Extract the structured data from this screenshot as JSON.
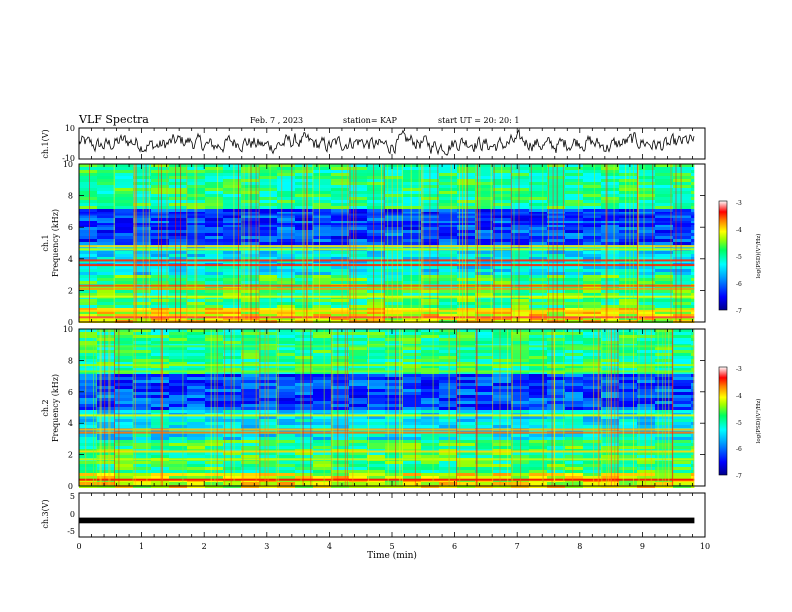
{
  "header": {
    "title": "VLF Spectra",
    "date": "Feb. 7 , 2023",
    "station": "station= KAP",
    "start_ut": "start UT =  20: 20: 1"
  },
  "colors": {
    "colormap": [
      "#00008b",
      "#0000ff",
      "#00a0ff",
      "#00ffff",
      "#00ff80",
      "#a0ff00",
      "#ffff00",
      "#ff8000",
      "#ff0000",
      "#ffffff"
    ],
    "trace": "#000000"
  },
  "chart_data": [
    {
      "type": "line",
      "panel": "ch1-waveform",
      "ylabel": "ch.1(V)",
      "ylim": [
        -10,
        10
      ],
      "yticks": [
        "10",
        "-10"
      ],
      "x_range_min": [
        0,
        9.83
      ],
      "description_values": "noisy oscillating trace around 0 V, amplitude roughly ±6 V"
    },
    {
      "type": "heatmap",
      "panel": "ch1-spectrogram",
      "ylabel": "ch.1\nFrequency (kHz)",
      "ylabel_line1": "ch.1",
      "ylabel_line2": "Frequency (kHz)",
      "ylim": [
        0,
        10
      ],
      "yticks": [
        "0",
        "2",
        "4",
        "6",
        "8",
        "10"
      ],
      "colorbar": {
        "label": "log(PSD)(V²/Hz)",
        "range": [
          -7,
          -3
        ],
        "ticks": [
          "-3",
          "-4",
          "-5",
          "-6",
          "-7"
        ]
      },
      "bands_khz": [
        {
          "f": 0.3,
          "level": -3.3
        },
        {
          "f": 0.7,
          "level": -4.0
        },
        {
          "f": 1.6,
          "level": -4.2
        },
        {
          "f": 2.1,
          "level": -3.8
        },
        {
          "f": 2.3,
          "level": -3.6
        },
        {
          "f": 3.6,
          "level": -3.5
        },
        {
          "f": 3.9,
          "level": -3.5
        },
        {
          "f": 4.6,
          "level": -4.3
        },
        {
          "f": 4.8,
          "level": -4.0
        },
        {
          "f": 6.2,
          "level": -6.5
        },
        {
          "f": 6.8,
          "level": -6.3
        }
      ]
    },
    {
      "type": "heatmap",
      "panel": "ch2-spectrogram",
      "ylabel_line1": "ch.2",
      "ylabel_line2": "Frequency (kHz)",
      "ylim": [
        0,
        10
      ],
      "yticks": [
        "0",
        "2",
        "4",
        "6",
        "8",
        "10"
      ],
      "colorbar": {
        "label": "log(PSD)(V²/Hz)",
        "range": [
          -7,
          -3
        ],
        "ticks": [
          "-3",
          "-4",
          "-5",
          "-6",
          "-7"
        ]
      },
      "bands_khz": [
        {
          "f": 0.4,
          "level": -3.4
        },
        {
          "f": 1.7,
          "level": -4.3
        },
        {
          "f": 2.2,
          "level": -4.0
        },
        {
          "f": 3.4,
          "level": -3.7
        },
        {
          "f": 3.6,
          "level": -3.9
        },
        {
          "f": 4.5,
          "level": -4.2
        },
        {
          "f": 7.3,
          "level": -4.5
        },
        {
          "f": 7.7,
          "level": -4.4
        },
        {
          "f": 8.9,
          "level": -4.6
        }
      ]
    },
    {
      "type": "line",
      "panel": "ch3-waveform",
      "ylabel": "ch.3(V)",
      "ylim": [
        -5,
        5
      ],
      "yticks": [
        "5",
        "0",
        "-5"
      ],
      "description_values": "flat thick band near -1 V across full record"
    }
  ],
  "xaxis": {
    "label": "Time  (min)",
    "range": [
      0,
      10
    ],
    "data_end": 9.83,
    "ticks": [
      "0",
      "1",
      "2",
      "3",
      "4",
      "5",
      "6",
      "7",
      "8",
      "9",
      "10"
    ]
  }
}
